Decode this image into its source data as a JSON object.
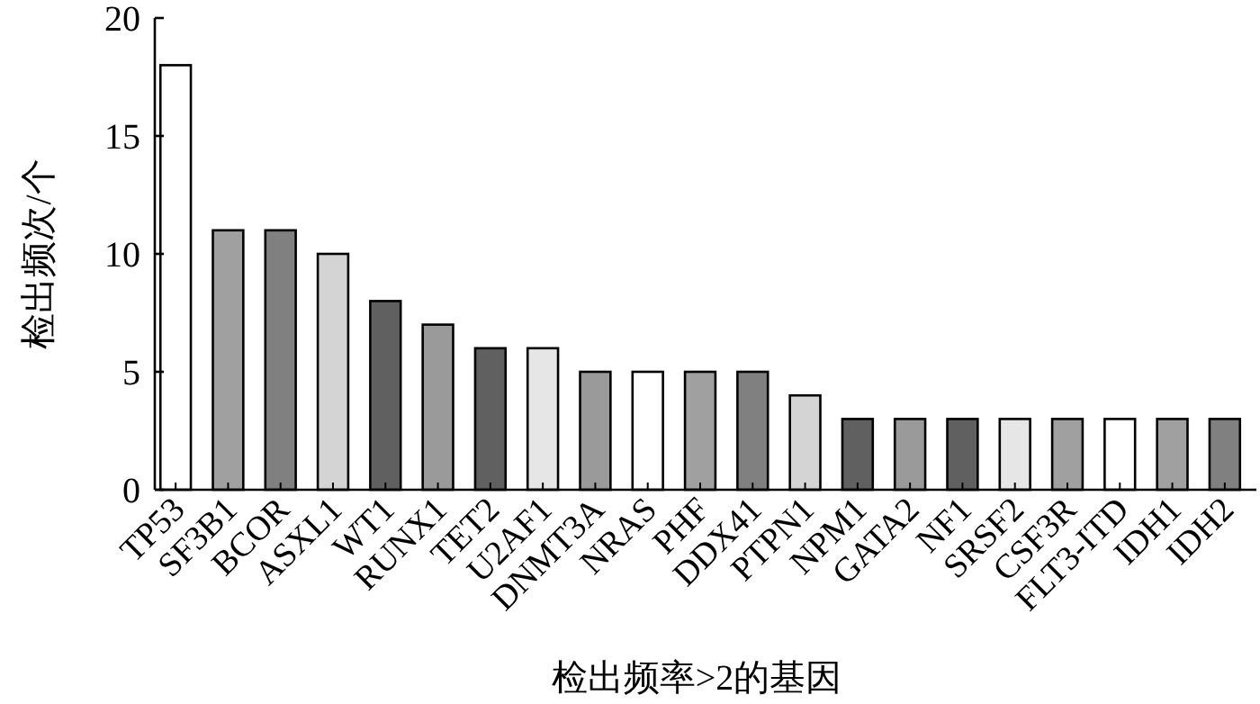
{
  "chart_data": {
    "type": "bar",
    "xlabel": "检出频率>2的基因",
    "ylabel": "检出频次/个",
    "categories": [
      "TP53",
      "SF3B1",
      "BCOR",
      "ASXL1",
      "WT1",
      "RUNX1",
      "TET2",
      "U2AF1",
      "DNMT3A",
      "NRAS",
      "PHF",
      "DDX41",
      "PTPN1",
      "NPM1",
      "GATA2",
      "NF1",
      "SRSF2",
      "CSF3R",
      "FLT3-ITD",
      "IDH1",
      "IDH2"
    ],
    "values": [
      18,
      11,
      11,
      10,
      8,
      7,
      6,
      6,
      5,
      5,
      5,
      5,
      4,
      3,
      3,
      3,
      3,
      3,
      3,
      3,
      3
    ],
    "colors": [
      "#ffffff",
      "#a0a0a0",
      "#808080",
      "#d4d4d4",
      "#606060",
      "#9a9a9a",
      "#606060",
      "#e6e6e6",
      "#9a9a9a",
      "#ffffff",
      "#a0a0a0",
      "#808080",
      "#d4d4d4",
      "#606060",
      "#9a9a9a",
      "#606060",
      "#e6e6e6",
      "#a0a0a0",
      "#ffffff",
      "#a0a0a0",
      "#808080"
    ],
    "ylim": [
      0,
      20
    ],
    "yticks": [
      0,
      5,
      10,
      15,
      20
    ],
    "grid": false
  }
}
